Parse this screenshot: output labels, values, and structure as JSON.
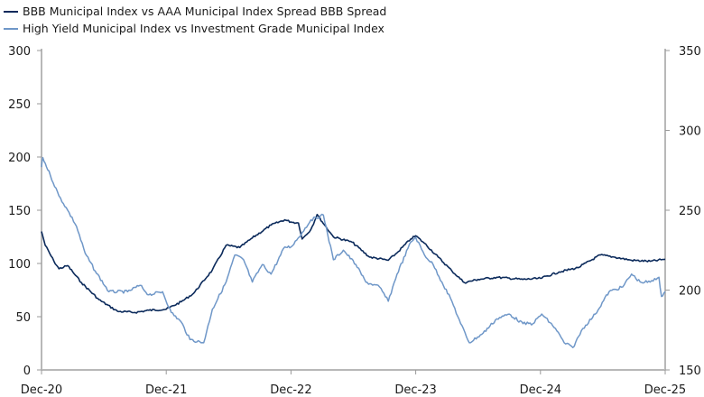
{
  "chart_data": {
    "type": "line",
    "title": "",
    "legend_position": "top-left",
    "x_ticks": [
      "Dec-20",
      "Dec-21",
      "Dec-22",
      "Dec-23",
      "Dec-24",
      "Dec-25"
    ],
    "x_range": [
      0,
      5
    ],
    "x_unit": "years since Dec-20",
    "y_left": {
      "ticks": [
        "0",
        "50",
        "100",
        "150",
        "200",
        "250",
        "300"
      ],
      "range": [
        0,
        300
      ]
    },
    "y_right": {
      "ticks": [
        "150",
        "200",
        "250",
        "300",
        "350"
      ],
      "range": [
        150,
        350
      ]
    },
    "grid": false,
    "series": [
      {
        "name": "BBB Municipal Index vs AAA Municipal Index Spread BBB Spread",
        "axis": "left",
        "color": "#0b2a5b",
        "points": [
          [
            0,
            130
          ],
          [
            0.03,
            117
          ],
          [
            0.1,
            102
          ],
          [
            0.14,
            95
          ],
          [
            0.21,
            98
          ],
          [
            0.25,
            92
          ],
          [
            0.32,
            82
          ],
          [
            0.46,
            66
          ],
          [
            0.61,
            55
          ],
          [
            0.75,
            54
          ],
          [
            0.86,
            56
          ],
          [
            1.0,
            57
          ],
          [
            1.12,
            64
          ],
          [
            1.22,
            72
          ],
          [
            1.37,
            94
          ],
          [
            1.48,
            117
          ],
          [
            1.59,
            115
          ],
          [
            1.69,
            124
          ],
          [
            1.84,
            136
          ],
          [
            1.95,
            141
          ],
          [
            2.0,
            139
          ],
          [
            2.06,
            138
          ],
          [
            2.09,
            123
          ],
          [
            2.16,
            132
          ],
          [
            2.21,
            146
          ],
          [
            2.27,
            136
          ],
          [
            2.34,
            125
          ],
          [
            2.49,
            120
          ],
          [
            2.63,
            106
          ],
          [
            2.78,
            103
          ],
          [
            2.85,
            110
          ],
          [
            2.96,
            123
          ],
          [
            3.0,
            126
          ],
          [
            3.07,
            119
          ],
          [
            3.18,
            106
          ],
          [
            3.29,
            93
          ],
          [
            3.39,
            82
          ],
          [
            3.5,
            85
          ],
          [
            3.65,
            87
          ],
          [
            3.86,
            85
          ],
          [
            4.0,
            86
          ],
          [
            4.15,
            92
          ],
          [
            4.3,
            96
          ],
          [
            4.48,
            108
          ],
          [
            4.59,
            106
          ],
          [
            4.73,
            103
          ],
          [
            4.88,
            102
          ],
          [
            5.0,
            104
          ]
        ]
      },
      {
        "name": "High Yield Municipal Index vs Investment Grade Municipal Index",
        "axis": "right",
        "color": "#6f97c8",
        "points": [
          [
            0,
            277
          ],
          [
            0.01,
            283
          ],
          [
            0.07,
            272
          ],
          [
            0.14,
            259
          ],
          [
            0.21,
            250
          ],
          [
            0.28,
            240
          ],
          [
            0.35,
            223
          ],
          [
            0.43,
            212
          ],
          [
            0.54,
            199
          ],
          [
            0.69,
            199
          ],
          [
            0.79,
            203
          ],
          [
            0.86,
            197
          ],
          [
            0.97,
            199
          ],
          [
            1.04,
            186
          ],
          [
            1.12,
            180
          ],
          [
            1.19,
            169
          ],
          [
            1.3,
            167
          ],
          [
            1.37,
            188
          ],
          [
            1.48,
            205
          ],
          [
            1.55,
            222
          ],
          [
            1.62,
            219
          ],
          [
            1.69,
            205
          ],
          [
            1.77,
            216
          ],
          [
            1.84,
            210
          ],
          [
            1.95,
            227
          ],
          [
            2.0,
            227
          ],
          [
            2.09,
            236
          ],
          [
            2.16,
            244
          ],
          [
            2.26,
            247
          ],
          [
            2.34,
            219
          ],
          [
            2.42,
            225
          ],
          [
            2.52,
            216
          ],
          [
            2.6,
            205
          ],
          [
            2.71,
            202
          ],
          [
            2.78,
            193
          ],
          [
            2.85,
            210
          ],
          [
            2.96,
            230
          ],
          [
            3.0,
            233
          ],
          [
            3.07,
            222
          ],
          [
            3.14,
            216
          ],
          [
            3.21,
            205
          ],
          [
            3.29,
            193
          ],
          [
            3.36,
            179
          ],
          [
            3.43,
            167
          ],
          [
            3.54,
            173
          ],
          [
            3.65,
            182
          ],
          [
            3.75,
            185
          ],
          [
            3.86,
            179
          ],
          [
            3.94,
            179
          ],
          [
            4.01,
            185
          ],
          [
            4.12,
            176
          ],
          [
            4.19,
            167
          ],
          [
            4.26,
            164
          ],
          [
            4.34,
            176
          ],
          [
            4.44,
            185
          ],
          [
            4.55,
            199
          ],
          [
            4.66,
            202
          ],
          [
            4.73,
            210
          ],
          [
            4.8,
            205
          ],
          [
            4.88,
            205
          ],
          [
            4.95,
            208
          ],
          [
            4.97,
            196
          ],
          [
            5.0,
            199
          ]
        ]
      }
    ]
  },
  "legend": [
    "BBB Municipal Index vs AAA Municipal Index Spread BBB Spread",
    "High Yield Municipal Index vs Investment Grade Municipal Index"
  ]
}
